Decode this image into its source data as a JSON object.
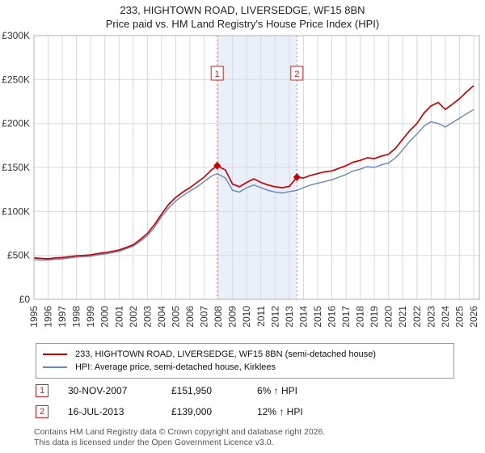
{
  "title": "233, HIGHTOWN ROAD, LIVERSEDGE, WF15 8BN",
  "subtitle": "Price paid vs. HM Land Registry's House Price Index (HPI)",
  "chart_data": {
    "type": "line",
    "title": "233, HIGHTOWN ROAD, LIVERSEDGE, WF15 8BN — Price paid vs. HPI",
    "xlabel": "",
    "ylabel": "",
    "xlim": [
      1995,
      2026.4
    ],
    "ylim": [
      0,
      300000
    ],
    "grid": true,
    "yticks": [
      0,
      50000,
      100000,
      150000,
      200000,
      250000,
      300000
    ],
    "ytick_labels": [
      "£0",
      "£50K",
      "£100K",
      "£150K",
      "£200K",
      "£250K",
      "£300K"
    ],
    "xticks": [
      1995,
      1996,
      1997,
      1998,
      1999,
      2000,
      2001,
      2002,
      2003,
      2004,
      2005,
      2006,
      2007,
      2008,
      2009,
      2010,
      2011,
      2012,
      2013,
      2014,
      2015,
      2016,
      2017,
      2018,
      2019,
      2020,
      2021,
      2022,
      2023,
      2024,
      2025,
      2026
    ],
    "x": [
      1995,
      1995.5,
      1996,
      1996.5,
      1997,
      1997.5,
      1998,
      1998.5,
      1999,
      1999.5,
      2000,
      2000.5,
      2001,
      2001.5,
      2002,
      2002.5,
      2003,
      2003.5,
      2004,
      2004.5,
      2005,
      2005.5,
      2006,
      2006.5,
      2007,
      2007.5,
      2007.92,
      2008.5,
      2009,
      2009.5,
      2010,
      2010.5,
      2011,
      2011.5,
      2012,
      2012.5,
      2013,
      2013.54,
      2014,
      2014.5,
      2015,
      2015.5,
      2016,
      2016.5,
      2017,
      2017.5,
      2018,
      2018.5,
      2019,
      2019.5,
      2020,
      2020.5,
      2021,
      2021.5,
      2022,
      2022.5,
      2023,
      2023.5,
      2024,
      2024.5,
      2025,
      2025.5,
      2026
    ],
    "series": [
      {
        "name": "233, HIGHTOWN ROAD, LIVERSEDGE, WF15 8BN (semi-detached house)",
        "color": "#cc0000",
        "values": [
          47000,
          46500,
          46000,
          47000,
          47500,
          48500,
          49500,
          50000,
          50500,
          52000,
          53000,
          54500,
          56000,
          59000,
          62000,
          68000,
          75000,
          85000,
          97000,
          108000,
          116000,
          122000,
          127000,
          133000,
          139000,
          147000,
          151950,
          147000,
          131000,
          128000,
          133000,
          137000,
          133000,
          130000,
          128000,
          127000,
          128500,
          139000,
          138000,
          141000,
          143000,
          145000,
          146000,
          149000,
          152000,
          156000,
          158000,
          161000,
          160000,
          163000,
          165000,
          172000,
          182000,
          192000,
          200000,
          212000,
          220000,
          224000,
          216000,
          222000,
          228000,
          236000,
          243000
        ]
      },
      {
        "name": "HPI: Average price, semi-detached house, Kirklees",
        "color": "#6688bb",
        "values": [
          45000,
          44500,
          44500,
          45500,
          46000,
          47000,
          48000,
          48500,
          49000,
          50500,
          51500,
          53000,
          54500,
          57500,
          60500,
          66000,
          72500,
          82000,
          94000,
          104000,
          112000,
          118000,
          123000,
          128000,
          134000,
          140000,
          143000,
          138000,
          124000,
          122000,
          127000,
          130000,
          127000,
          124000,
          122000,
          121000,
          122500,
          124000,
          127000,
          130000,
          132000,
          134000,
          136000,
          139000,
          142000,
          146000,
          148000,
          151000,
          150000,
          153000,
          155000,
          161000,
          170000,
          180000,
          188000,
          197000,
          202000,
          200000,
          196000,
          201000,
          206000,
          211000,
          216000
        ]
      }
    ],
    "shaded_region": {
      "from": 2007.92,
      "to": 2013.54,
      "color": "#e9f0fa"
    },
    "markers": [
      {
        "label": "1",
        "x": 2007.92,
        "y": 151950
      },
      {
        "label": "2",
        "x": 2013.54,
        "y": 139000
      }
    ],
    "legend_position": "below"
  },
  "annotations": [
    {
      "label": "1",
      "date": "30-NOV-2007",
      "price": "£151,950",
      "hpi": "6% ↑ HPI"
    },
    {
      "label": "2",
      "date": "16-JUL-2013",
      "price": "£139,000",
      "hpi": "12% ↑ HPI"
    }
  ],
  "footer": {
    "line1": "Contains HM Land Registry data © Crown copyright and database right 2026.",
    "line2": "This data is licensed under the Open Government Licence v3.0."
  }
}
